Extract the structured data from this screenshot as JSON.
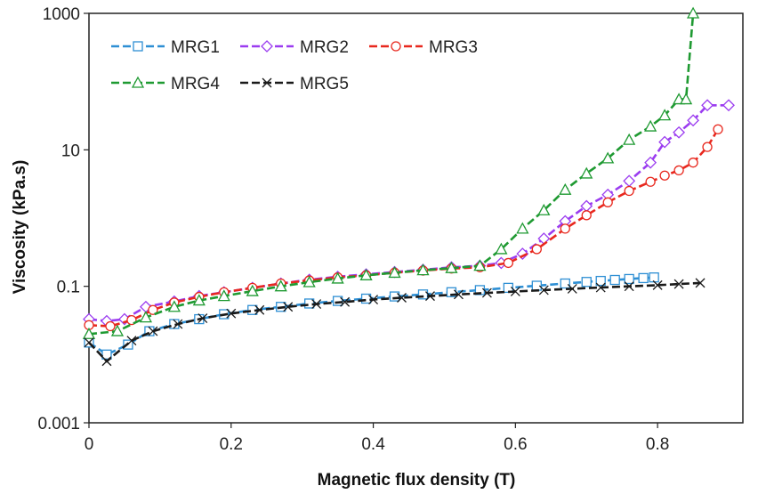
{
  "chart_data": {
    "type": "line",
    "title": "",
    "xlabel": "Magnetic flux density (T)",
    "ylabel": "Viscosity (kPa.s)",
    "xlim": [
      0,
      0.92
    ],
    "ylim": [
      0.001,
      1000
    ],
    "yscale": "log",
    "grid": false,
    "legend_position": "top-left",
    "x_ticks": [
      0,
      0.2,
      0.4,
      0.6,
      0.8
    ],
    "x_tick_labels": [
      "0",
      "0.2",
      "0.4",
      "0.6",
      "0.8"
    ],
    "y_ticks": [
      0.001,
      0.1,
      10,
      1000
    ],
    "y_tick_labels": [
      "0.001",
      "0.1",
      "10",
      "1000"
    ],
    "series": [
      {
        "name": "MRG1",
        "color": "#2e8fd4",
        "marker": "square",
        "x": [
          0,
          0.025,
          0.055,
          0.085,
          0.12,
          0.155,
          0.19,
          0.23,
          0.27,
          0.31,
          0.35,
          0.39,
          0.43,
          0.47,
          0.51,
          0.55,
          0.59,
          0.63,
          0.67,
          0.7,
          0.72,
          0.74,
          0.76,
          0.78,
          0.795
        ],
        "y": [
          0.015,
          0.01,
          0.014,
          0.022,
          0.028,
          0.033,
          0.039,
          0.045,
          0.05,
          0.056,
          0.061,
          0.066,
          0.071,
          0.076,
          0.082,
          0.088,
          0.095,
          0.102,
          0.11,
          0.116,
          0.12,
          0.124,
          0.128,
          0.132,
          0.135
        ]
      },
      {
        "name": "MRG2",
        "color": "#9b3cf0",
        "marker": "diamond",
        "x": [
          0,
          0.025,
          0.05,
          0.08,
          0.12,
          0.155,
          0.19,
          0.23,
          0.27,
          0.31,
          0.35,
          0.39,
          0.43,
          0.47,
          0.51,
          0.55,
          0.58,
          0.61,
          0.64,
          0.67,
          0.7,
          0.73,
          0.76,
          0.79,
          0.81,
          0.83,
          0.85,
          0.87,
          0.9
        ],
        "y": [
          0.033,
          0.031,
          0.033,
          0.05,
          0.06,
          0.072,
          0.082,
          0.095,
          0.11,
          0.125,
          0.138,
          0.15,
          0.162,
          0.175,
          0.19,
          0.2,
          0.22,
          0.3,
          0.5,
          0.9,
          1.5,
          2.2,
          3.5,
          6.5,
          13,
          18,
          27,
          45,
          45
        ]
      },
      {
        "name": "MRG3",
        "color": "#e8281e",
        "marker": "circle",
        "x": [
          0,
          0.03,
          0.06,
          0.09,
          0.12,
          0.155,
          0.19,
          0.23,
          0.27,
          0.31,
          0.35,
          0.39,
          0.43,
          0.47,
          0.51,
          0.55,
          0.59,
          0.63,
          0.67,
          0.7,
          0.73,
          0.76,
          0.79,
          0.81,
          0.83,
          0.85,
          0.87,
          0.885
        ],
        "y": [
          0.027,
          0.026,
          0.032,
          0.045,
          0.058,
          0.07,
          0.082,
          0.095,
          0.11,
          0.122,
          0.135,
          0.145,
          0.158,
          0.17,
          0.182,
          0.19,
          0.22,
          0.35,
          0.7,
          1.1,
          1.7,
          2.5,
          3.4,
          4.2,
          5,
          6.5,
          11,
          20
        ]
      },
      {
        "name": "MRG4",
        "color": "#1f9a32",
        "marker": "triangle",
        "x": [
          0,
          0.04,
          0.08,
          0.12,
          0.155,
          0.19,
          0.23,
          0.27,
          0.31,
          0.35,
          0.39,
          0.43,
          0.47,
          0.51,
          0.55,
          0.58,
          0.61,
          0.64,
          0.67,
          0.7,
          0.73,
          0.76,
          0.79,
          0.81,
          0.83,
          0.84,
          0.85
        ],
        "y": [
          0.02,
          0.022,
          0.035,
          0.05,
          0.062,
          0.072,
          0.085,
          0.1,
          0.115,
          0.13,
          0.145,
          0.158,
          0.172,
          0.185,
          0.2,
          0.35,
          0.7,
          1.3,
          2.6,
          4.5,
          7.5,
          14,
          22,
          32,
          55,
          55,
          1000
        ]
      },
      {
        "name": "MRG5",
        "color": "#1a1a1a",
        "marker": "x",
        "x": [
          0,
          0.025,
          0.06,
          0.09,
          0.125,
          0.16,
          0.2,
          0.24,
          0.28,
          0.32,
          0.36,
          0.4,
          0.44,
          0.48,
          0.52,
          0.56,
          0.6,
          0.64,
          0.68,
          0.72,
          0.76,
          0.8,
          0.83,
          0.86
        ],
        "y": [
          0.015,
          0.008,
          0.016,
          0.022,
          0.028,
          0.034,
          0.04,
          0.045,
          0.05,
          0.055,
          0.059,
          0.064,
          0.068,
          0.072,
          0.076,
          0.08,
          0.084,
          0.088,
          0.092,
          0.096,
          0.1,
          0.104,
          0.108,
          0.112
        ]
      }
    ]
  }
}
